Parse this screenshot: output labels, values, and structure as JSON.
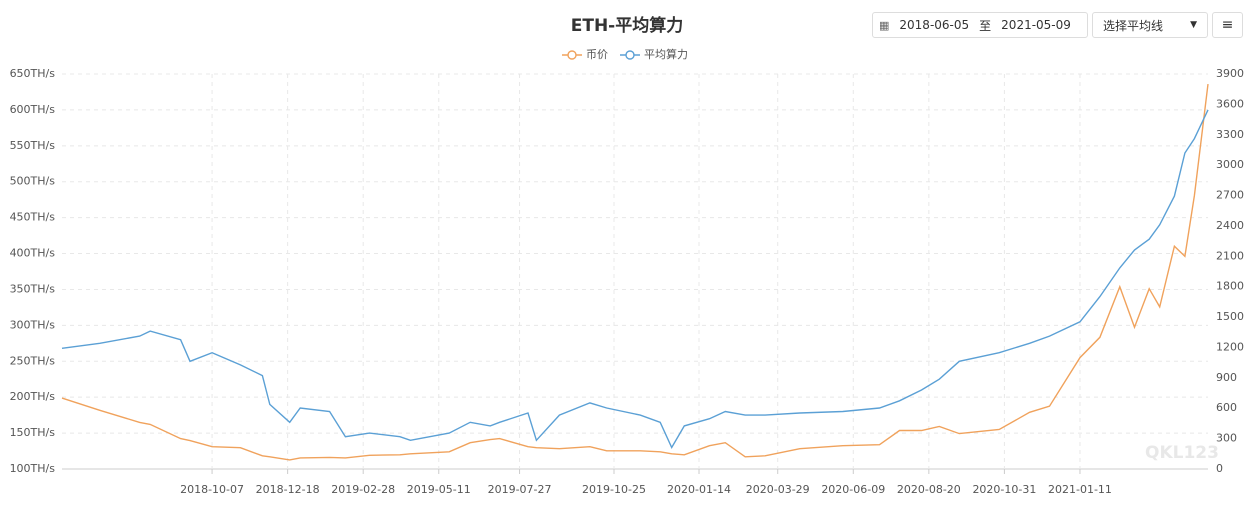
{
  "toolbar": {
    "start_date": "2018-06-05",
    "separator": "至",
    "end_date": "2021-05-09",
    "select_label": "选择平均线"
  },
  "watermark": "QKL123",
  "chart_data": {
    "type": "line",
    "title": "ETH-平均算力",
    "x": [
      "2018-05-17",
      "2018-06-22",
      "2018-07-30",
      "2018-08-09",
      "2018-09-07",
      "2018-09-16",
      "2018-10-07",
      "2018-11-03",
      "2018-11-24",
      "2018-12-01",
      "2018-12-20",
      "2018-12-30",
      "2019-01-27",
      "2019-02-11",
      "2019-03-06",
      "2019-04-04",
      "2019-04-14",
      "2019-05-21",
      "2019-06-10",
      "2019-06-29",
      "2019-07-08",
      "2019-08-04",
      "2019-08-12",
      "2019-09-03",
      "2019-10-02",
      "2019-10-18",
      "2019-11-19",
      "2019-12-08",
      "2019-12-19",
      "2019-12-31",
      "2020-01-24",
      "2020-02-08",
      "2020-02-27",
      "2020-03-17",
      "2020-04-19",
      "2020-05-30",
      "2020-07-04",
      "2020-07-23",
      "2020-08-13",
      "2020-08-30",
      "2020-09-18",
      "2020-10-26",
      "2020-11-24",
      "2020-12-13",
      "2021-01-11",
      "2021-01-30",
      "2021-02-18",
      "2021-03-04",
      "2021-03-18",
      "2021-03-28",
      "2021-04-11",
      "2021-04-21",
      "2021-04-30",
      "2021-05-13"
    ],
    "series": [
      {
        "name": "币价",
        "color": "#f0a25c",
        "axis": "y2",
        "values": [
          700,
          580,
          460,
          440,
          300,
          280,
          220,
          210,
          130,
          120,
          90,
          110,
          115,
          110,
          135,
          140,
          150,
          170,
          260,
          290,
          300,
          220,
          210,
          200,
          220,
          180,
          180,
          170,
          150,
          140,
          230,
          260,
          120,
          130,
          200,
          230,
          240,
          380,
          380,
          420,
          350,
          390,
          560,
          620,
          1100,
          1300,
          1800,
          1400,
          1780,
          1600,
          2200,
          2100,
          2700,
          3800
        ]
      },
      {
        "name": "平均算力",
        "color": "#5ba0d5",
        "values": [
          268,
          275,
          285,
          292,
          280,
          250,
          262,
          245,
          230,
          190,
          165,
          185,
          180,
          145,
          150,
          145,
          140,
          150,
          165,
          160,
          165,
          178,
          140,
          175,
          192,
          185,
          175,
          165,
          130,
          160,
          170,
          180,
          175,
          175,
          178,
          180,
          185,
          195,
          210,
          225,
          250,
          262,
          275,
          285,
          305,
          340,
          380,
          405,
          420,
          440,
          480,
          540,
          560,
          600
        ]
      }
    ],
    "xlim": [
      "2018-05-17",
      "2021-05-13"
    ],
    "xticks": [
      "2018-10-07",
      "2018-12-18",
      "2019-02-28",
      "2019-05-11",
      "2019-07-27",
      "2019-10-25",
      "2020-01-14",
      "2020-03-29",
      "2020-06-09",
      "2020-08-20",
      "2020-10-31",
      "2021-01-11"
    ],
    "ylim": [
      100,
      650
    ],
    "yticks": [
      {
        "value": 100,
        "label": "100TH/s"
      },
      {
        "value": 150,
        "label": "150TH/s"
      },
      {
        "value": 200,
        "label": "200TH/s"
      },
      {
        "value": 250,
        "label": "250TH/s"
      },
      {
        "value": 300,
        "label": "300TH/s"
      },
      {
        "value": 350,
        "label": "350TH/s"
      },
      {
        "value": 400,
        "label": "400TH/s"
      },
      {
        "value": 450,
        "label": "450TH/s"
      },
      {
        "value": 500,
        "label": "500TH/s"
      },
      {
        "value": 550,
        "label": "550TH/s"
      },
      {
        "value": 600,
        "label": "600TH/s"
      },
      {
        "value": 650,
        "label": "650TH/s"
      }
    ],
    "y2lim": [
      0,
      3900
    ],
    "y2ticks": [
      0,
      300,
      600,
      900,
      1200,
      1500,
      1800,
      2100,
      2400,
      2700,
      3000,
      3300,
      3600,
      3900
    ],
    "grid": true
  }
}
